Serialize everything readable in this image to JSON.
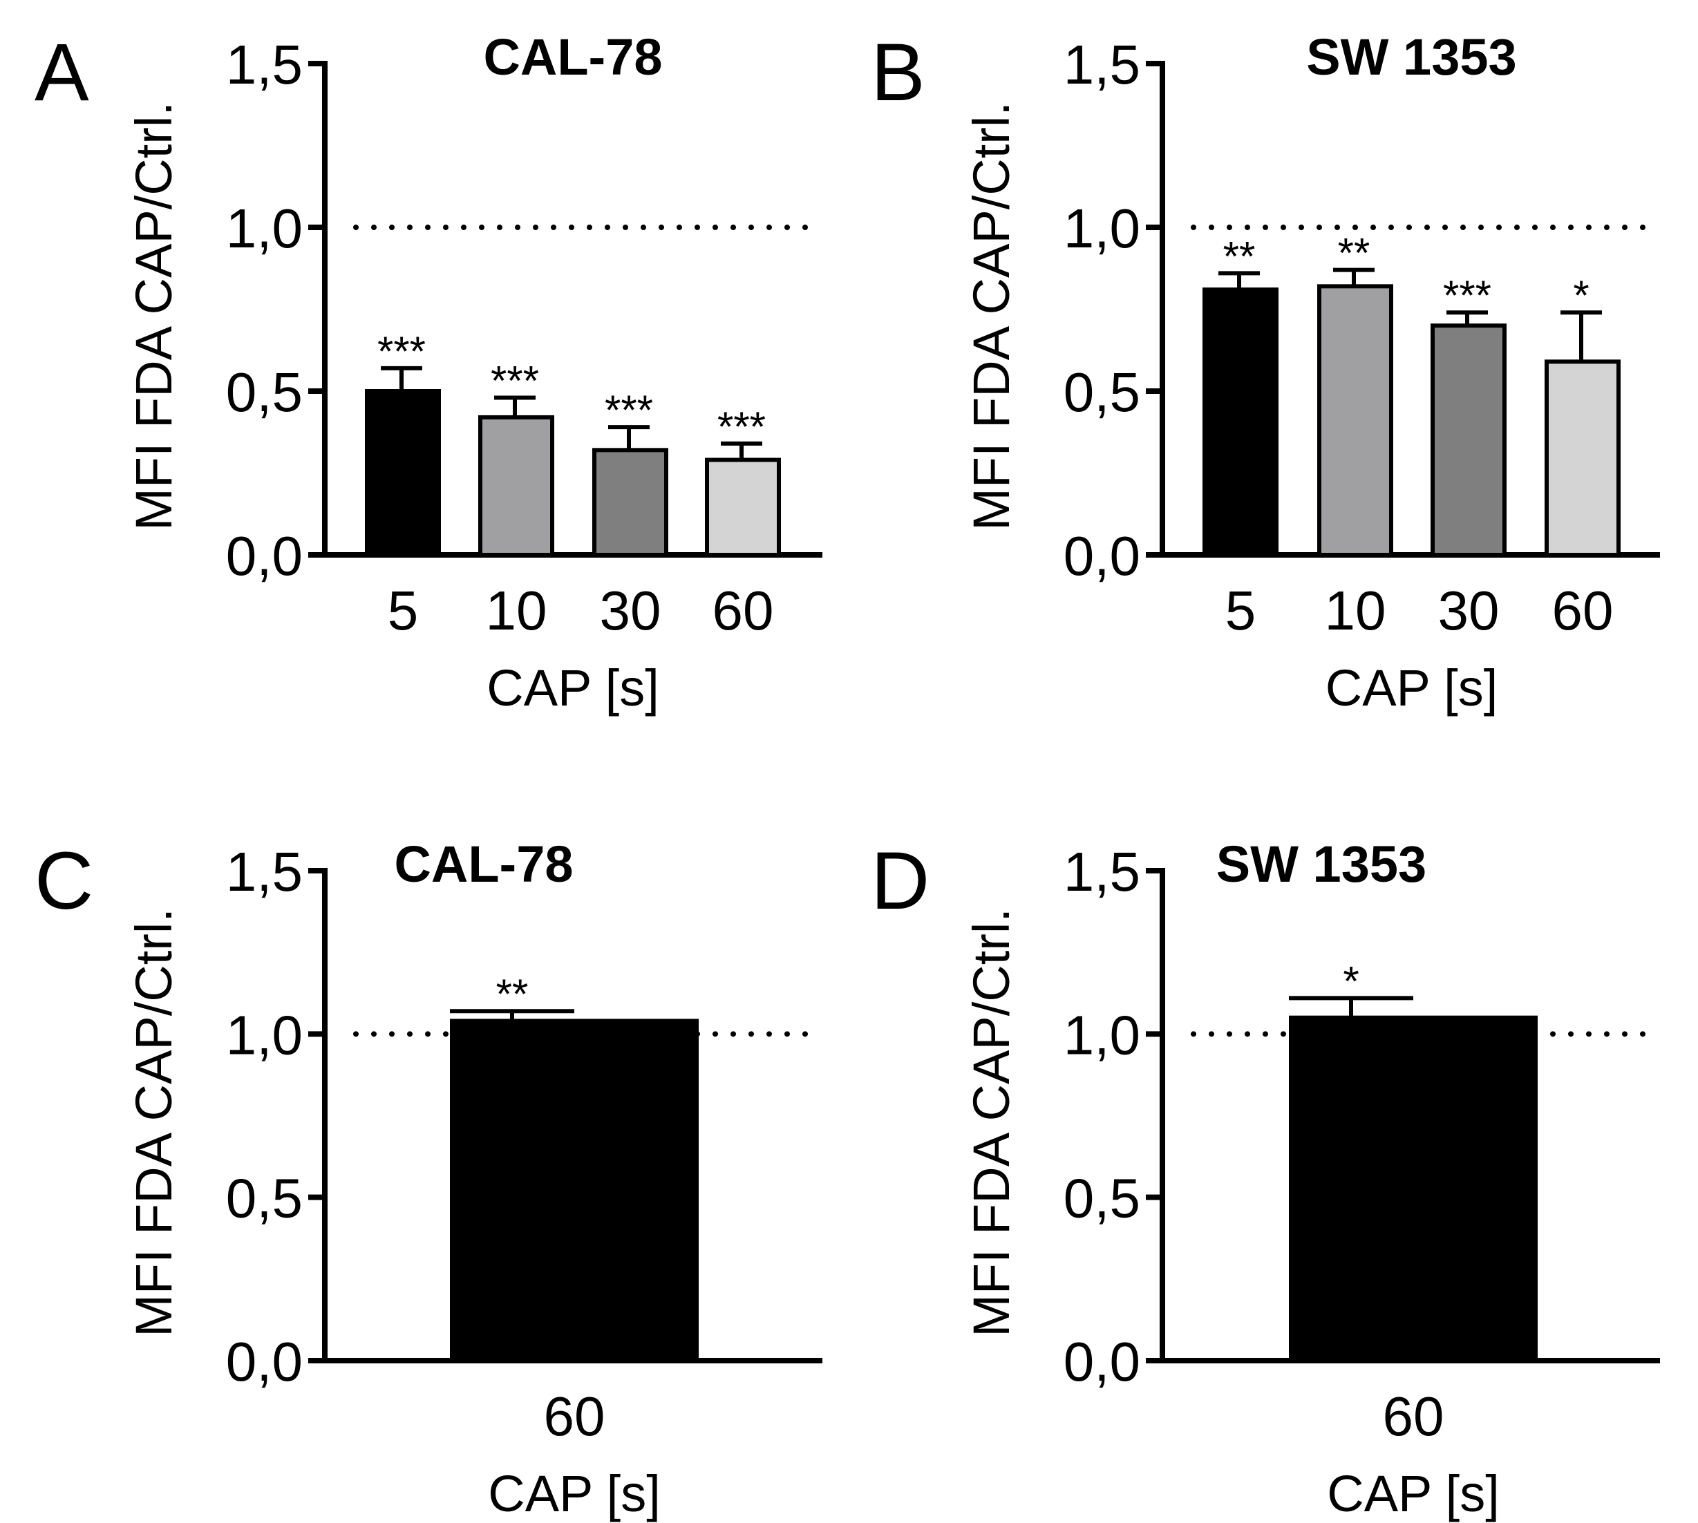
{
  "chart_data": [
    {
      "panel": "A",
      "type": "bar",
      "title": "CAL-78",
      "xlabel": "CAP [s]",
      "ylabel": "MFI FDA CAP/Ctrl.",
      "ylim": [
        0,
        1.5
      ],
      "yticks": [
        "0,0",
        "0,5",
        "1,0",
        "1,5"
      ],
      "reference_line": 1.0,
      "categories": [
        "5",
        "10",
        "30",
        "60"
      ],
      "values": [
        0.5,
        0.42,
        0.32,
        0.29
      ],
      "errors": [
        0.07,
        0.06,
        0.07,
        0.05
      ],
      "colors": [
        "#000000",
        "#a0a0a2",
        "#7f7f7f",
        "#d4d4d4"
      ],
      "significance": [
        "***",
        "***",
        "***",
        "***"
      ]
    },
    {
      "panel": "B",
      "type": "bar",
      "title": "SW 1353",
      "xlabel": "CAP [s]",
      "ylabel": "MFI FDA CAP/Ctrl.",
      "ylim": [
        0,
        1.5
      ],
      "yticks": [
        "0,0",
        "0,5",
        "1,0",
        "1,5"
      ],
      "reference_line": 1.0,
      "categories": [
        "5",
        "10",
        "30",
        "60"
      ],
      "values": [
        0.81,
        0.82,
        0.7,
        0.59
      ],
      "errors": [
        0.05,
        0.05,
        0.04,
        0.15
      ],
      "colors": [
        "#000000",
        "#a0a0a2",
        "#7f7f7f",
        "#d4d4d4"
      ],
      "significance": [
        "**",
        "**",
        "***",
        "*"
      ]
    },
    {
      "panel": "C",
      "type": "bar",
      "title": "CAL-78",
      "xlabel": "CAP [s]",
      "ylabel": "MFI FDA CAP/Ctrl.",
      "ylim": [
        0,
        1.5
      ],
      "yticks": [
        "0,0",
        "0,5",
        "1,0",
        "1,5"
      ],
      "reference_line": 1.0,
      "categories": [
        "60"
      ],
      "values": [
        1.04
      ],
      "errors": [
        0.03
      ],
      "colors": [
        "#000000"
      ],
      "significance": [
        "**"
      ]
    },
    {
      "panel": "D",
      "type": "bar",
      "title": "SW 1353",
      "xlabel": "CAP [s]",
      "ylabel": "MFI FDA CAP/Ctrl.",
      "ylim": [
        0,
        1.5
      ],
      "yticks": [
        "0,0",
        "0,5",
        "1,0",
        "1,5"
      ],
      "reference_line": 1.0,
      "categories": [
        "60"
      ],
      "values": [
        1.05
      ],
      "errors": [
        0.06
      ],
      "colors": [
        "#000000"
      ],
      "significance": [
        "*"
      ]
    }
  ]
}
